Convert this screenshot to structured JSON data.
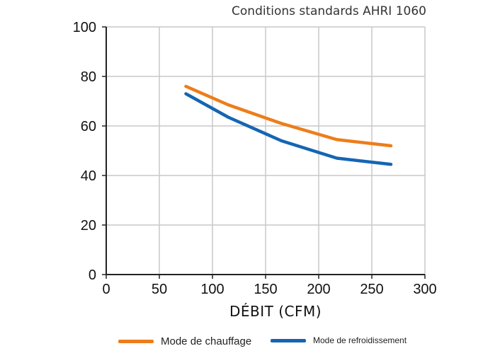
{
  "chart_data": {
    "type": "line",
    "note": "Conditions standards AHRI 1060",
    "xlabel": "DÉBIT (CFM)",
    "ylabel": "",
    "xlim": [
      0,
      300
    ],
    "ylim": [
      0,
      100
    ],
    "xticks": [
      "0",
      "50",
      "100",
      "150",
      "200",
      "250",
      "300"
    ],
    "yticks": [
      "0",
      "20",
      "40",
      "60",
      "80",
      "100"
    ],
    "grid": true,
    "legend_position": "bottom",
    "series": [
      {
        "name": "Mode de chauffage",
        "color": "#ED7D1A",
        "x": [
          75,
          115,
          165,
          217,
          268
        ],
        "y": [
          76,
          68.5,
          61,
          54.5,
          52
        ]
      },
      {
        "name": "Mode de refroidissement",
        "color": "#1565B3",
        "x": [
          75,
          115,
          165,
          217,
          268
        ],
        "y": [
          73,
          63.5,
          54,
          47,
          44.5
        ]
      }
    ]
  }
}
